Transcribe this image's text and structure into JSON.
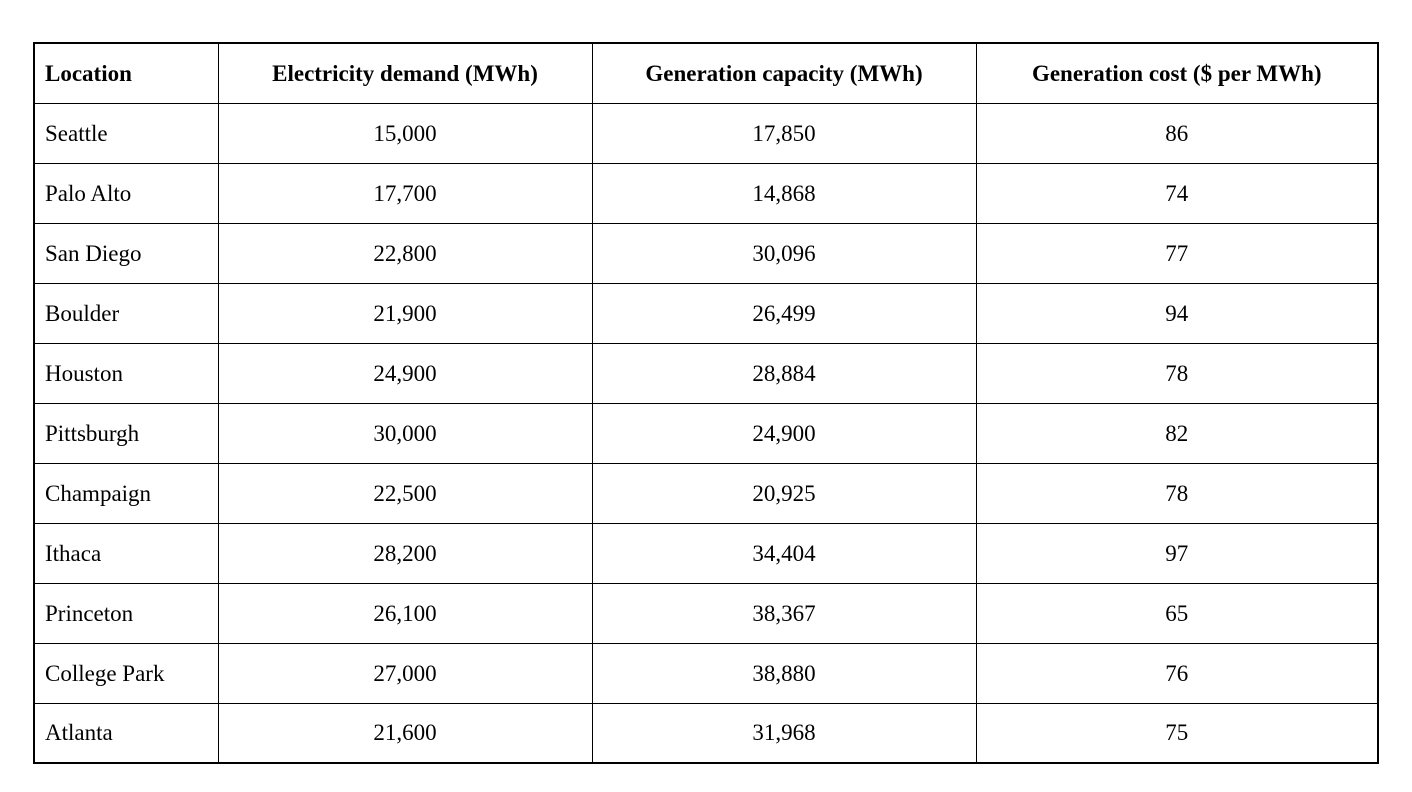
{
  "table": {
    "columns": [
      "Location",
      "Electricity demand (MWh)",
      "Generation capacity (MWh)",
      "Generation cost ($ per MWh)"
    ],
    "rows": [
      {
        "location": "Seattle",
        "demand": "15,000",
        "capacity": "17,850",
        "cost": "86"
      },
      {
        "location": "Palo Alto",
        "demand": "17,700",
        "capacity": "14,868",
        "cost": "74"
      },
      {
        "location": "San Diego",
        "demand": "22,800",
        "capacity": "30,096",
        "cost": "77"
      },
      {
        "location": "Boulder",
        "demand": "21,900",
        "capacity": "26,499",
        "cost": "94"
      },
      {
        "location": "Houston",
        "demand": "24,900",
        "capacity": "28,884",
        "cost": "78"
      },
      {
        "location": "Pittsburgh",
        "demand": "30,000",
        "capacity": "24,900",
        "cost": "82"
      },
      {
        "location": "Champaign",
        "demand": "22,500",
        "capacity": "20,925",
        "cost": "78"
      },
      {
        "location": "Ithaca",
        "demand": "28,200",
        "capacity": "34,404",
        "cost": "97"
      },
      {
        "location": "Princeton",
        "demand": "26,100",
        "capacity": "38,367",
        "cost": "65"
      },
      {
        "location": "College Park",
        "demand": "27,000",
        "capacity": "38,880",
        "cost": "76"
      },
      {
        "location": "Atlanta",
        "demand": "21,600",
        "capacity": "31,968",
        "cost": "75"
      }
    ]
  }
}
